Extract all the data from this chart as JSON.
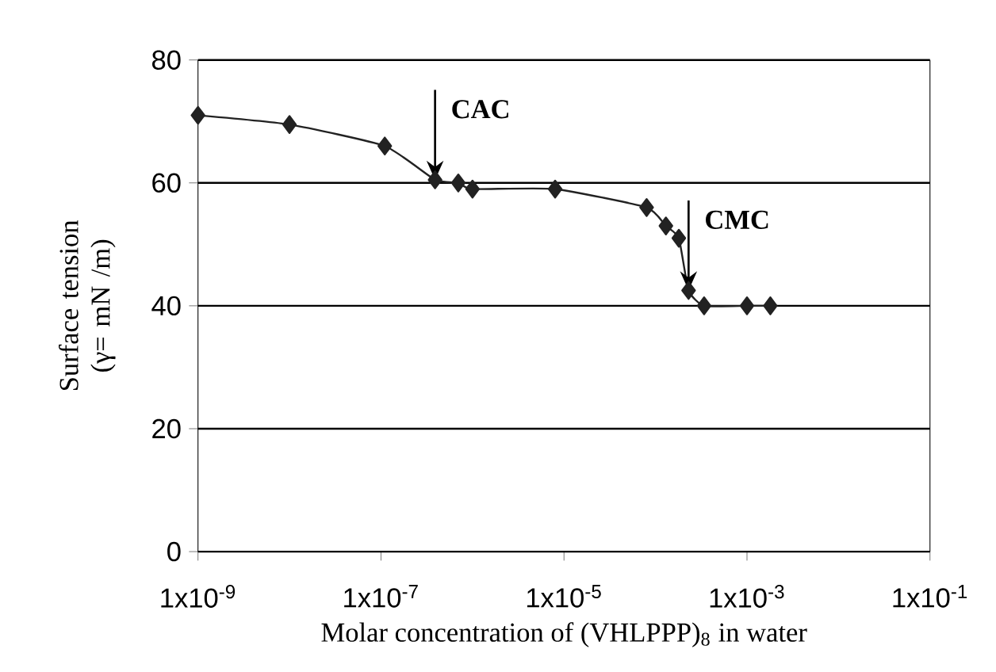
{
  "chart_data": {
    "type": "line",
    "xlabel": "Molar concentration of (VHLPPP)$_{8}$ in water",
    "ylabel": "Surface tension (γ= mN /m)",
    "log": "x",
    "xlim": [
      1e-09,
      0.1
    ],
    "ylim": [
      0,
      80
    ],
    "xticks": [
      {
        "value": 1e-09,
        "label": "1x10$^{-9}$"
      },
      {
        "value": 1e-07,
        "label": "1x10$^{-7}$"
      },
      {
        "value": 1e-05,
        "label": "1x10$^{-5}$"
      },
      {
        "value": 0.001,
        "label": "1x10$^{-3}$"
      },
      {
        "value": 0.1,
        "label": "1x10$^{-1}$"
      }
    ],
    "yticks": [
      0,
      20,
      40,
      60,
      80
    ],
    "grid": "y",
    "marker": "diamond",
    "line_style": "solid",
    "series": [
      {
        "color": "#222222",
        "x": [
          1e-09,
          1e-08,
          1.1e-07,
          3.9e-07,
          7e-07,
          1e-06,
          8e-06,
          8e-05,
          0.00013,
          0.00018,
          0.00023,
          0.00034,
          0.001,
          0.0018
        ],
        "values": [
          71,
          69.5,
          66,
          60.5,
          60,
          59,
          59,
          56,
          53,
          51,
          42.5,
          40,
          40,
          40
        ]
      }
    ],
    "annotations": [
      {
        "text": "CAC",
        "x": 3.9e-07,
        "y": 60.5
      },
      {
        "text": "CMC",
        "x": 0.00023,
        "y": 42.5
      }
    ]
  }
}
